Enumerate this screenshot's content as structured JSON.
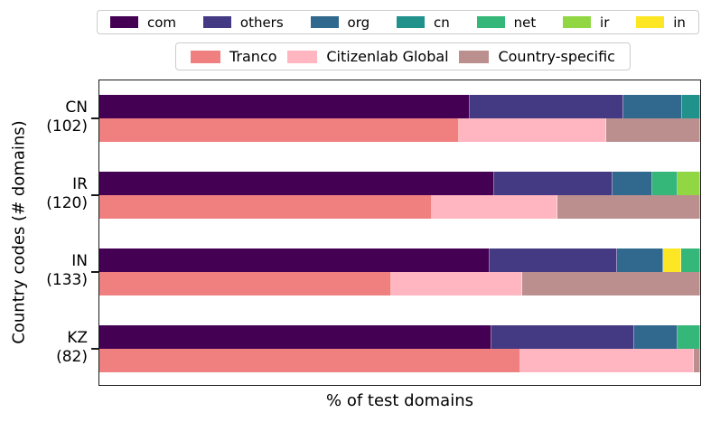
{
  "axes": {
    "x_label": "% of test domains",
    "y_label": "Country codes (# domains)"
  },
  "legends": {
    "tld": {
      "items": [
        {
          "label": "com",
          "color": "#440154"
        },
        {
          "label": "others",
          "color": "#443983"
        },
        {
          "label": "org",
          "color": "#31688e"
        },
        {
          "label": "cn",
          "color": "#21918c"
        },
        {
          "label": "net",
          "color": "#35b779"
        },
        {
          "label": "ir",
          "color": "#90d743"
        },
        {
          "label": "in",
          "color": "#fde725"
        }
      ]
    },
    "source": {
      "items": [
        {
          "label": "Tranco",
          "color": "#f08080"
        },
        {
          "label": "Citizenlab Global",
          "color": "#ffb6c1"
        },
        {
          "label": "Country-specific",
          "color": "#bc8f8f"
        }
      ]
    }
  },
  "chart_data": {
    "type": "bar",
    "orientation": "horizontal",
    "stacked": true,
    "title": "",
    "xlabel": "% of test domains",
    "ylabel": "Country codes (# domains)",
    "xlim": [
      0,
      100
    ],
    "x_ticks_visible": false,
    "grid": false,
    "legend_position": "top, two rows (TLDs; test-list sources)",
    "note": "Each country has two 100%-stacked bars: top = TLD distribution, bottom = test-list source distribution. Percentages estimated from pixel measurement.",
    "groups": [
      {
        "code": "CN",
        "domain_count": 102,
        "tick_label_line1": "CN",
        "tick_label_line2": "(102)",
        "tld_segments": [
          {
            "name": "com",
            "pct": 61.7
          },
          {
            "name": "others",
            "pct": 25.5
          },
          {
            "name": "org",
            "pct": 9.8
          },
          {
            "name": "cn",
            "pct": 3.0
          }
        ],
        "source_segments": [
          {
            "name": "Tranco",
            "pct": 59.9
          },
          {
            "name": "Citizenlab Global",
            "pct": 24.4
          },
          {
            "name": "Country-specific",
            "pct": 15.7
          }
        ]
      },
      {
        "code": "IR",
        "domain_count": 120,
        "tick_label_line1": "IR",
        "tick_label_line2": "(120)",
        "tld_segments": [
          {
            "name": "com",
            "pct": 65.7
          },
          {
            "name": "others",
            "pct": 19.7
          },
          {
            "name": "org",
            "pct": 6.7
          },
          {
            "name": "net",
            "pct": 4.2
          },
          {
            "name": "ir",
            "pct": 3.7
          }
        ],
        "source_segments": [
          {
            "name": "Tranco",
            "pct": 55.3
          },
          {
            "name": "Citizenlab Global",
            "pct": 20.9
          },
          {
            "name": "Country-specific",
            "pct": 23.8
          }
        ]
      },
      {
        "code": "IN",
        "domain_count": 133,
        "tick_label_line1": "IN",
        "tick_label_line2": "(133)",
        "tld_segments": [
          {
            "name": "com",
            "pct": 65.0
          },
          {
            "name": "others",
            "pct": 21.1
          },
          {
            "name": "org",
            "pct": 7.7
          },
          {
            "name": "in",
            "pct": 3.0
          },
          {
            "name": "net",
            "pct": 3.2
          }
        ],
        "source_segments": [
          {
            "name": "Tranco",
            "pct": 48.6
          },
          {
            "name": "Citizenlab Global",
            "pct": 21.8
          },
          {
            "name": "Country-specific",
            "pct": 29.6
          }
        ]
      },
      {
        "code": "KZ",
        "domain_count": 82,
        "tick_label_line1": "KZ",
        "tick_label_line2": "(82)",
        "tld_segments": [
          {
            "name": "com",
            "pct": 65.2
          },
          {
            "name": "others",
            "pct": 23.8
          },
          {
            "name": "org",
            "pct": 7.2
          },
          {
            "name": "net",
            "pct": 3.8
          }
        ],
        "source_segments": [
          {
            "name": "Tranco",
            "pct": 70.1
          },
          {
            "name": "Citizenlab Global",
            "pct": 28.8
          },
          {
            "name": "Country-specific",
            "pct": 1.1
          }
        ]
      }
    ]
  }
}
